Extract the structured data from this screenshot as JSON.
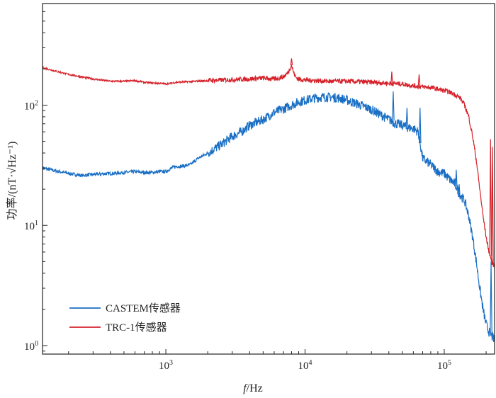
{
  "chart_data": {
    "type": "line",
    "xscale": "log",
    "yscale": "log",
    "xlim": [
      130,
      230000
    ],
    "ylim": [
      0.85,
      700
    ],
    "xlabel_italic": "f",
    "xlabel_unit": "/Hz",
    "ylabel": "功率/(nT·√Hz⁻¹)",
    "xticks": [
      {
        "base": "10",
        "exp": "3",
        "value": 1000
      },
      {
        "base": "10",
        "exp": "4",
        "value": 10000
      },
      {
        "base": "10",
        "exp": "5",
        "value": 100000
      }
    ],
    "yticks": [
      {
        "base": "10",
        "exp": "0",
        "value": 1
      },
      {
        "base": "10",
        "exp": "1",
        "value": 10
      },
      {
        "base": "10",
        "exp": "2",
        "value": 100
      }
    ],
    "grid": false,
    "legend_position": "bottom-left",
    "series": [
      {
        "name": "CASTEM传感器",
        "color": "#1a6fc4",
        "x": [
          130,
          200,
          250,
          300,
          400,
          500,
          600,
          700,
          800,
          900,
          1000,
          1100,
          1200,
          1300,
          1500,
          1700,
          2000,
          2500,
          3000,
          3500,
          4000,
          5000,
          6000,
          7000,
          8000,
          9000,
          10000,
          12000,
          14000,
          16000,
          18000,
          20000,
          25000,
          30000,
          35000,
          40000,
          45000,
          50000,
          55000,
          60000,
          65000,
          70000,
          80000,
          90000,
          100000,
          110000,
          120000,
          130000,
          140000,
          150000,
          160000,
          170000,
          180000,
          190000,
          200000,
          210000,
          220000,
          230000
        ],
        "values": [
          30,
          27,
          26,
          26.5,
          27,
          27.5,
          28,
          27.5,
          27.5,
          28,
          28,
          30,
          31,
          31,
          32,
          36,
          40,
          47,
          55,
          60,
          68,
          76,
          87,
          93,
          100,
          106,
          110,
          115,
          117,
          116,
          114,
          110,
          100,
          92,
          83,
          76,
          70,
          68,
          65,
          64,
          60,
          36,
          32,
          28,
          27,
          24,
          22,
          18,
          16,
          12,
          8,
          5,
          3,
          2,
          1.5,
          1.3,
          1.2,
          1.1
        ],
        "noise_amplitude": 0.08,
        "spikes": [
          {
            "x": 43000,
            "y": 130
          },
          {
            "x": 54000,
            "y": 95
          },
          {
            "x": 67000,
            "y": 95
          },
          {
            "x": 122000,
            "y": 29
          },
          {
            "x": 128000,
            "y": 22
          },
          {
            "x": 217000,
            "y": 5
          }
        ]
      },
      {
        "name": "TRC-1传感器",
        "color": "#d6222b",
        "x": [
          130,
          200,
          300,
          400,
          500,
          600,
          700,
          800,
          900,
          1000,
          1200,
          1500,
          2000,
          3000,
          4000,
          5000,
          6000,
          7000,
          7500,
          8000,
          8300,
          8600,
          9000,
          10000,
          12000,
          15000,
          20000,
          30000,
          40000,
          50000,
          60000,
          70000,
          80000,
          90000,
          100000,
          110000,
          120000,
          130000,
          140000,
          150000,
          160000,
          170000,
          180000,
          190000,
          200000,
          210000,
          220000,
          230000
        ],
        "values": [
          205,
          180,
          165,
          158,
          158,
          160,
          155,
          153,
          152,
          150,
          155,
          157,
          160,
          163,
          165,
          168,
          165,
          172,
          185,
          215,
          185,
          170,
          165,
          162,
          160,
          158,
          158,
          155,
          152,
          150,
          145,
          142,
          140,
          136,
          132,
          128,
          122,
          115,
          100,
          80,
          55,
          35,
          20,
          12,
          8,
          6,
          5,
          4.5
        ],
        "noise_amplitude": 0.04,
        "spikes": [
          {
            "x": 8000,
            "y": 245
          },
          {
            "x": 42000,
            "y": 190
          },
          {
            "x": 66000,
            "y": 180
          },
          {
            "x": 215000,
            "y": 52
          },
          {
            "x": 222000,
            "y": 45
          }
        ]
      }
    ]
  }
}
